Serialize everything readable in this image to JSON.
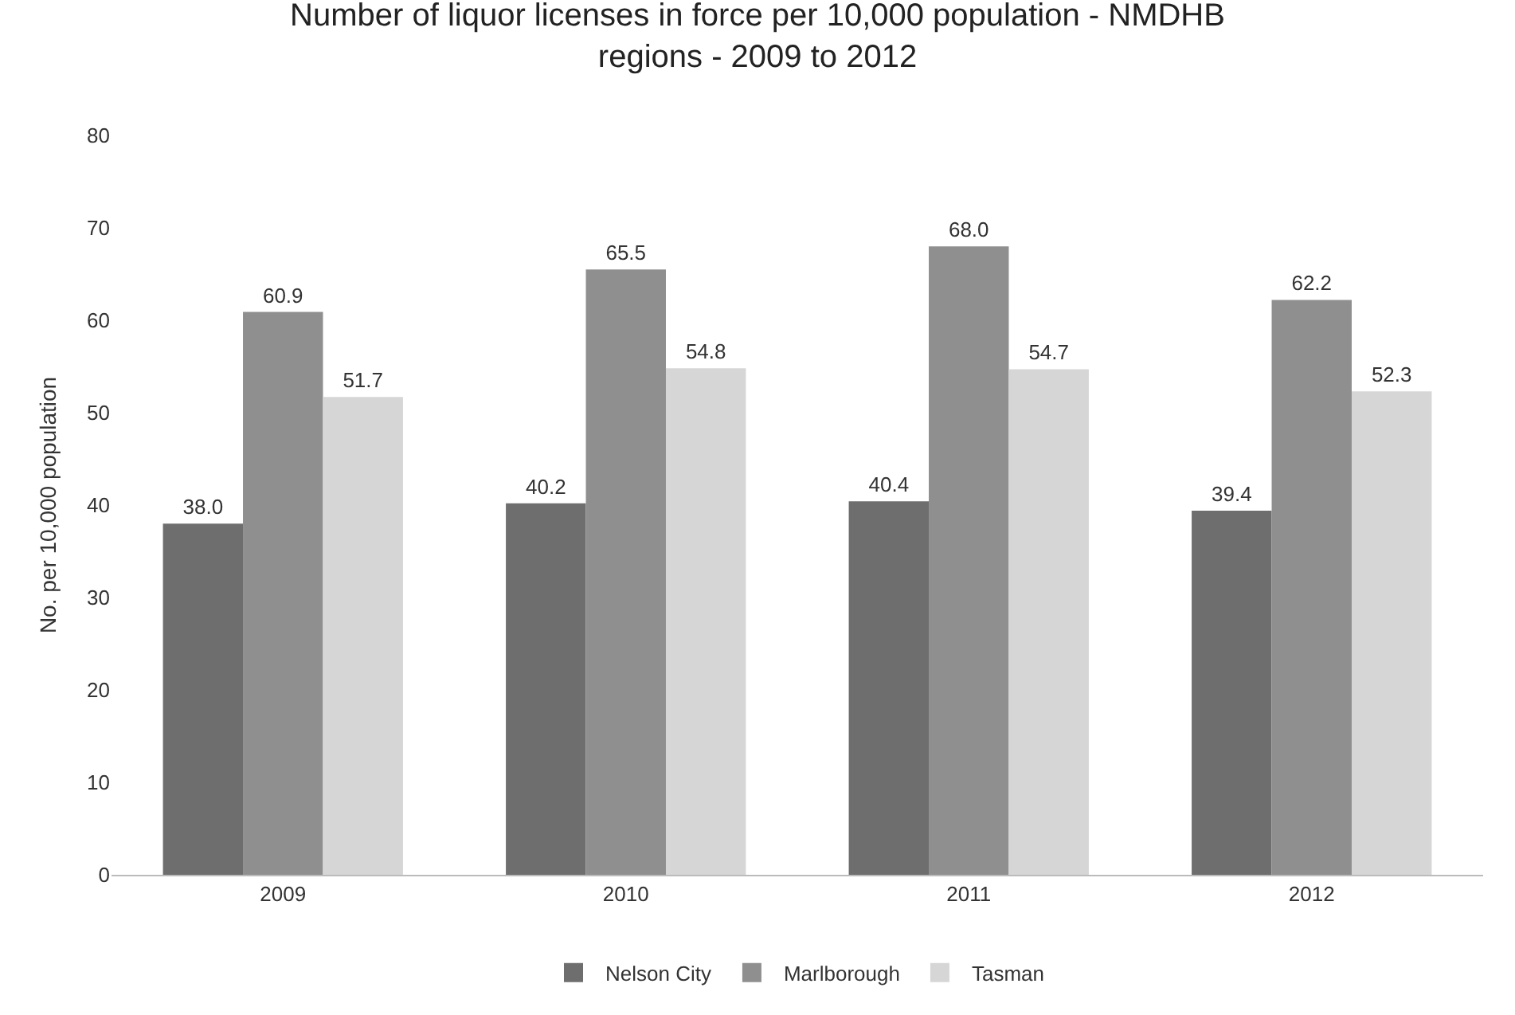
{
  "chart_data": {
    "type": "bar",
    "title": "Number of liquor licenses in force per 10,000 population - NMDHB regions - 2009 to 2012",
    "ylabel": "No. per 10,000 population",
    "categories": [
      "2009",
      "2010",
      "2011",
      "2012"
    ],
    "series": [
      {
        "name": "Nelson City",
        "color": "#6e6e6e",
        "values": [
          38.0,
          40.2,
          40.4,
          39.4
        ],
        "value_labels": [
          "38.0",
          "40.2",
          "40.4",
          "39.4"
        ]
      },
      {
        "name": "Marlborough",
        "color": "#8f8f8f",
        "values": [
          60.9,
          65.5,
          68.0,
          62.2
        ],
        "value_labels": [
          "60.9",
          "65.5",
          "68.0",
          "62.2"
        ]
      },
      {
        "name": "Tasman",
        "color": "#d6d6d6",
        "values": [
          51.7,
          54.8,
          54.7,
          52.3
        ],
        "value_labels": [
          "51.7",
          "54.8",
          "54.7",
          "52.3"
        ]
      }
    ],
    "ylim": [
      0,
      80
    ],
    "yticks": [
      0,
      10,
      20,
      30,
      40,
      50,
      60,
      70,
      80
    ],
    "grid": false,
    "legend": "bottom"
  }
}
